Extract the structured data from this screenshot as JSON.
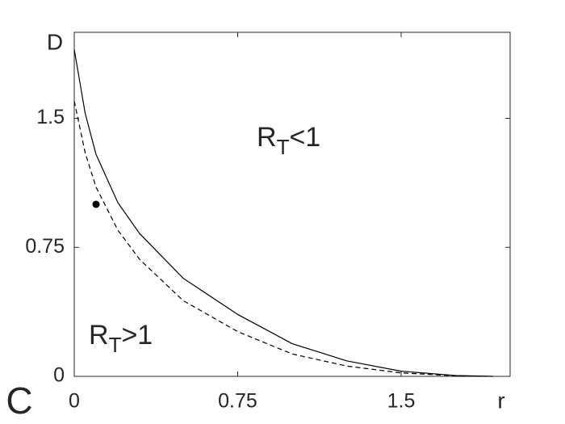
{
  "chart_data": {
    "type": "line",
    "panel_label": "C",
    "xlabel": "r",
    "ylabel": "D",
    "x": [
      0,
      0.05,
      0.1,
      0.2,
      0.3,
      0.5,
      0.75,
      1.0,
      1.25,
      1.5,
      1.75,
      1.92
    ],
    "series": [
      {
        "color": "#000000",
        "dash": false,
        "values": [
          1.9,
          1.53,
          1.29,
          1.01,
          0.83,
          0.57,
          0.36,
          0.19,
          0.09,
          0.03,
          0.005,
          0
        ]
      },
      {
        "color": "#000000",
        "dash": true,
        "values": [
          1.6,
          1.3,
          1.1,
          0.85,
          0.68,
          0.44,
          0.26,
          0.13,
          0.06,
          0.02,
          0.003,
          0
        ]
      }
    ],
    "points": [
      {
        "color": "#000000",
        "x": 0.1,
        "y": 1.0
      }
    ],
    "annotations": [
      {
        "base": "R",
        "subscript": "T",
        "suffix": "<1"
      },
      {
        "base": "R",
        "subscript": "T",
        "suffix": ">1"
      }
    ],
    "xlim": [
      0,
      2
    ],
    "ylim": [
      0,
      2
    ],
    "xticks": [
      0,
      0.75,
      1.5
    ],
    "yticks": [
      0,
      0.75,
      1.5
    ]
  }
}
